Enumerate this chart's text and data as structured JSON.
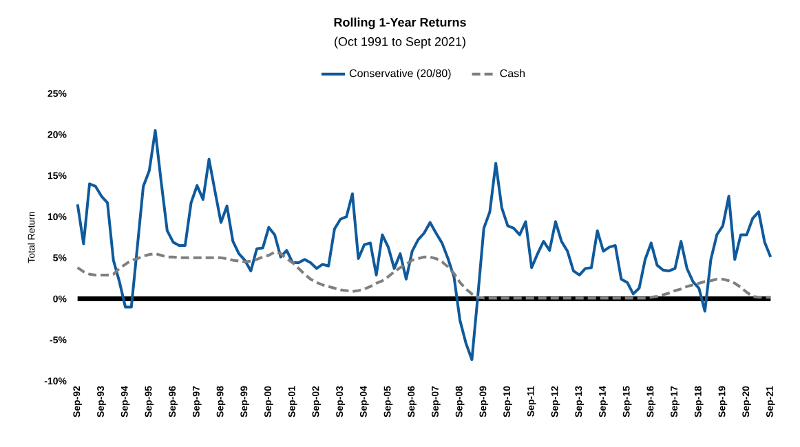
{
  "chart_data": {
    "type": "line",
    "title": "Rolling 1-Year Returns",
    "subtitle": "(Oct 1991 to Sept 2021)",
    "ylabel": "Total Return",
    "categories": [
      "Sep-92",
      null,
      null,
      null,
      "Sep-93",
      null,
      null,
      null,
      "Sep-94",
      null,
      null,
      null,
      "Sep-95",
      null,
      null,
      null,
      "Sep-96",
      null,
      null,
      null,
      "Sep-97",
      null,
      null,
      null,
      "Sep-98",
      null,
      null,
      null,
      "Sep-99",
      null,
      null,
      null,
      "Sep-00",
      null,
      null,
      null,
      "Sep-01",
      null,
      null,
      null,
      "Sep-02",
      null,
      null,
      null,
      "Sep-03",
      null,
      null,
      null,
      "Sep-04",
      null,
      null,
      null,
      "Sep-05",
      null,
      null,
      null,
      "Sep-06",
      null,
      null,
      null,
      "Sep-07",
      null,
      null,
      null,
      "Sep-08",
      null,
      null,
      null,
      "Sep-09",
      null,
      null,
      null,
      "Sep-10",
      null,
      null,
      null,
      "Sep-11",
      null,
      null,
      null,
      "Sep-12",
      null,
      null,
      null,
      "Sep-13",
      null,
      null,
      null,
      "Sep-14",
      null,
      null,
      null,
      "Sep-15",
      null,
      null,
      null,
      "Sep-16",
      null,
      null,
      null,
      "Sep-17",
      null,
      null,
      null,
      "Sep-18",
      null,
      null,
      null,
      "Sep-19",
      null,
      null,
      null,
      "Sep-20",
      null,
      null,
      null,
      "Sep-21"
    ],
    "series": [
      {
        "name": "Conservative (20/80)",
        "color": "#0f5a9c",
        "line_style": "solid",
        "values": [
          11.5,
          6.7,
          14.0,
          13.7,
          12.5,
          11.7,
          4.7,
          2.1,
          -1.0,
          -1.0,
          6.3,
          13.7,
          15.6,
          20.5,
          14.2,
          8.3,
          6.9,
          6.5,
          6.5,
          11.7,
          13.8,
          12.1,
          17.0,
          13.1,
          9.3,
          11.3,
          7.0,
          5.5,
          4.7,
          3.4,
          6.1,
          6.2,
          8.7,
          7.8,
          5.1,
          5.9,
          4.4,
          4.4,
          4.8,
          4.4,
          3.7,
          4.2,
          4.0,
          8.5,
          9.7,
          10.0,
          12.8,
          4.9,
          6.6,
          6.8,
          2.9,
          7.8,
          6.3,
          3.7,
          5.5,
          2.4,
          5.8,
          7.2,
          8.0,
          9.3,
          8.0,
          6.8,
          4.9,
          2.7,
          -2.6,
          -5.4,
          -7.4,
          0.4,
          8.6,
          10.6,
          16.5,
          11.1,
          8.9,
          8.6,
          7.8,
          9.4,
          3.8,
          5.5,
          7.0,
          5.9,
          9.4,
          7.0,
          5.8,
          3.4,
          2.9,
          3.7,
          3.8,
          8.3,
          5.8,
          6.3,
          6.5,
          2.4,
          2.0,
          0.6,
          1.3,
          4.8,
          6.8,
          4.1,
          3.5,
          3.4,
          3.7,
          7.0,
          3.7,
          2.1,
          1.3,
          -1.5,
          4.8,
          7.8,
          8.9,
          12.5,
          4.8,
          7.8,
          7.8,
          9.8,
          10.6,
          6.9,
          5.1
        ]
      },
      {
        "name": "Cash",
        "color": "#7f7f7f",
        "line_style": "dashed",
        "values": [
          3.8,
          3.3,
          3.0,
          2.9,
          2.9,
          2.9,
          3.0,
          3.7,
          4.2,
          4.7,
          4.9,
          5.2,
          5.4,
          5.5,
          5.3,
          5.1,
          5.1,
          5.0,
          5.0,
          5.0,
          5.0,
          5.0,
          5.0,
          5.0,
          5.0,
          4.9,
          4.7,
          4.6,
          4.5,
          4.6,
          4.8,
          5.1,
          5.3,
          5.7,
          5.5,
          4.9,
          4.4,
          3.7,
          3.0,
          2.4,
          2.0,
          1.7,
          1.5,
          1.3,
          1.1,
          1.0,
          0.9,
          1.0,
          1.2,
          1.5,
          1.9,
          2.2,
          2.7,
          3.3,
          3.8,
          4.2,
          4.7,
          4.9,
          5.1,
          5.1,
          4.9,
          4.5,
          3.9,
          3.1,
          2.0,
          1.2,
          0.6,
          0.2,
          0.1,
          0.1,
          0.1,
          0.1,
          0.1,
          0.1,
          0.1,
          0.1,
          0.1,
          0.1,
          0.1,
          0.1,
          0.1,
          0.1,
          0.1,
          0.1,
          0.1,
          0.1,
          0.1,
          0.1,
          0.1,
          0.1,
          0.1,
          0.1,
          0.1,
          0.1,
          0.1,
          0.1,
          0.2,
          0.3,
          0.5,
          0.7,
          1.0,
          1.2,
          1.5,
          1.7,
          1.9,
          2.1,
          2.2,
          2.4,
          2.4,
          2.2,
          1.9,
          1.4,
          0.8,
          0.3,
          0.2,
          0.2,
          0.2
        ]
      }
    ],
    "ylim": [
      -10,
      25
    ],
    "yticks": [
      {
        "value": -10,
        "label": "-10%"
      },
      {
        "value": -5,
        "label": "-5%"
      },
      {
        "value": 0,
        "label": "0%"
      },
      {
        "value": 5,
        "label": "5%"
      },
      {
        "value": 10,
        "label": "10%"
      },
      {
        "value": 15,
        "label": "15%"
      },
      {
        "value": 20,
        "label": "20%"
      },
      {
        "value": 25,
        "label": "25%"
      }
    ],
    "ref_lines": [
      {
        "axis": "y",
        "value": 0,
        "color": "#000000"
      }
    ],
    "grid": false,
    "legend": "top"
  }
}
